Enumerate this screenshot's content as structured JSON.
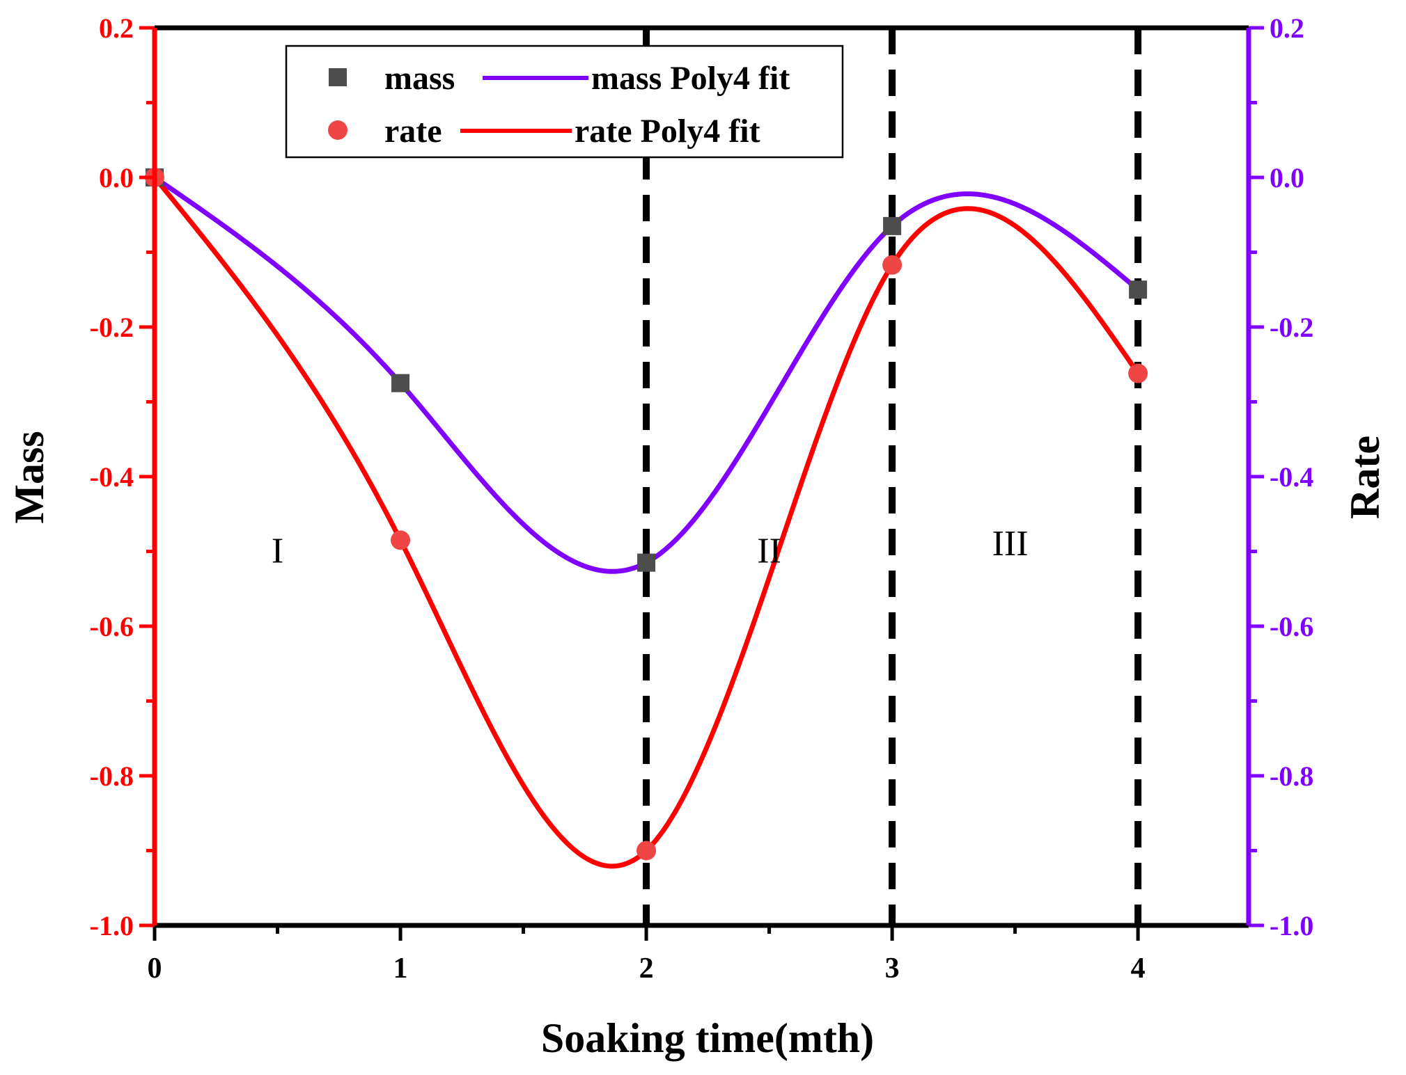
{
  "chart_data": {
    "type": "scatter",
    "xlabel": "Soaking time(mth)",
    "ylabel_left": "Mass",
    "ylabel_right": "Rate",
    "xlim": [
      0,
      4.45
    ],
    "ylim_left": [
      -1.0,
      0.2
    ],
    "ylim_right": [
      -1.0,
      0.2
    ],
    "x_ticks": [
      "0",
      "1",
      "2",
      "3",
      "4"
    ],
    "y_ticks_left": [
      "0.2",
      "0.0",
      "-0.2",
      "-0.4",
      "-0.6",
      "-0.8",
      "-1.0"
    ],
    "y_ticks_right": [
      "0.2",
      "0.0",
      "-0.2",
      "-0.4",
      "-0.6",
      "-0.8",
      "-1.0"
    ],
    "vlines_x": [
      2,
      3,
      4
    ],
    "regions": [
      {
        "label": "I",
        "x": 0.5,
        "y": -0.5
      },
      {
        "label": "II",
        "x": 2.5,
        "y": -0.5
      },
      {
        "label": "III",
        "x": 3.48,
        "y": -0.49
      }
    ],
    "legend": {
      "position": "top-left",
      "entries": [
        "mass",
        "mass Poly4 fit",
        "rate",
        "rate Poly4 fit"
      ]
    },
    "colors": {
      "mass_points": "#4d4d4d",
      "mass_fit": "#8000ff",
      "rate_points": "#f04545",
      "rate_fit": "#ff0000",
      "left_axis": "#ff0000",
      "right_axis": "#8000ff",
      "vlines": "#000000"
    },
    "series": [
      {
        "name": "mass",
        "axis": "left",
        "x": [
          0,
          1,
          2,
          3,
          4
        ],
        "y": [
          0.0,
          -0.275,
          -0.515,
          -0.065,
          -0.15
        ]
      },
      {
        "name": "rate",
        "axis": "right",
        "x": [
          0,
          1,
          2,
          3,
          4
        ],
        "y": [
          0.0,
          -0.485,
          -0.9,
          -0.117,
          -0.262
        ]
      },
      {
        "name": "mass Poly4 fit",
        "axis": "left",
        "x_range": [
          0,
          4
        ],
        "y_at_knots": [
          0.0,
          -0.275,
          -0.515,
          -0.065,
          -0.15
        ]
      },
      {
        "name": "rate Poly4 fit",
        "axis": "right",
        "x_range": [
          0,
          4
        ],
        "y_at_knots": [
          0.0,
          -0.485,
          -0.9,
          -0.117,
          -0.262
        ]
      }
    ]
  }
}
